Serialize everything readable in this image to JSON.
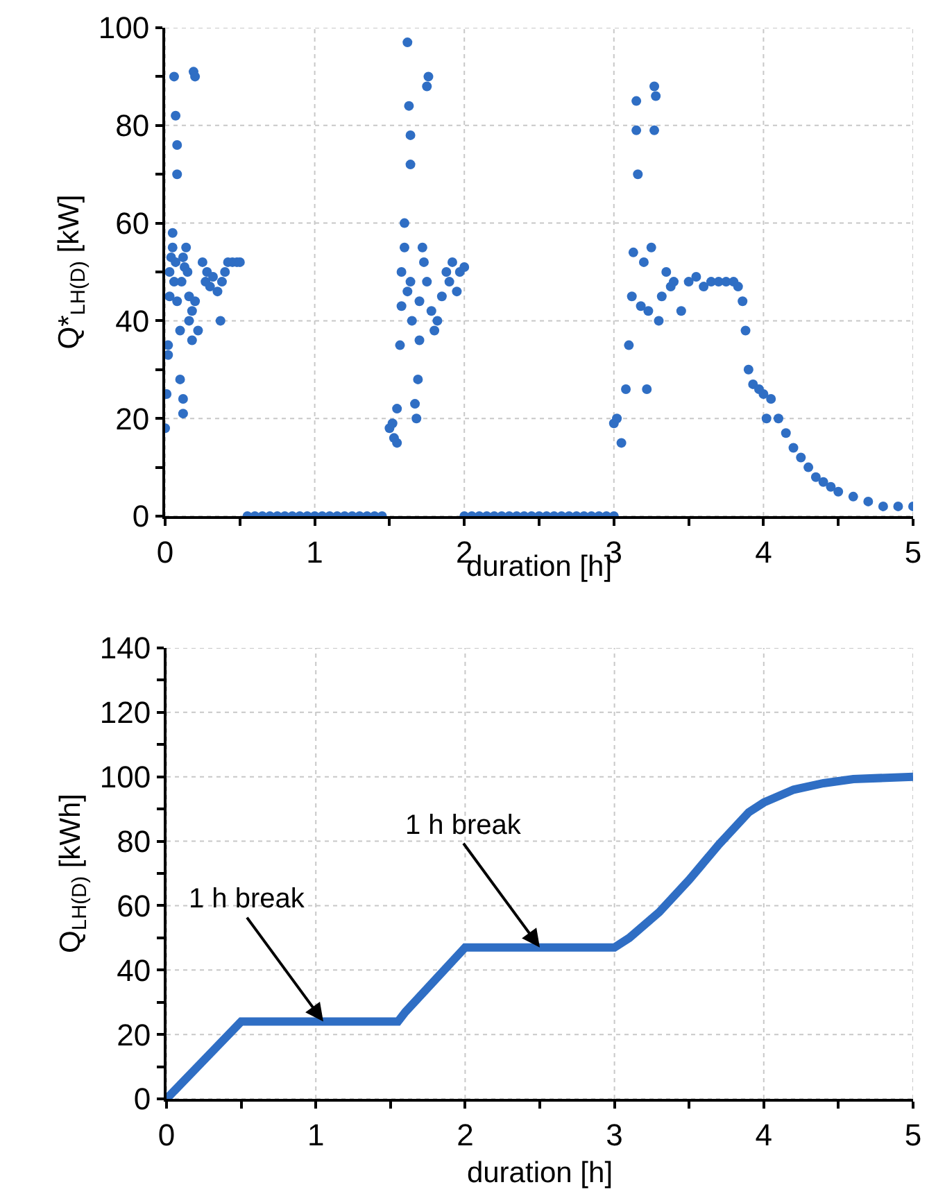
{
  "chart_data": [
    {
      "type": "scatter",
      "xlabel": "duration [h]",
      "ylabel": "Q*$_{LH(D)}$ [kW]",
      "marker": "circle",
      "grid": true,
      "xlim": [
        0,
        5
      ],
      "xticks": [
        0,
        {
          "value": 0.5,
          "label": null
        },
        1,
        {
          "value": 1.5,
          "label": null
        },
        2,
        {
          "value": 2.5,
          "label": null
        },
        3,
        {
          "value": 3.5,
          "label": null
        },
        4,
        {
          "value": 4.5,
          "label": null
        },
        5
      ],
      "ylim": [
        0,
        100
      ],
      "yticks": [
        0,
        {
          "value": 10,
          "label": null
        },
        20,
        {
          "value": 30,
          "label": null
        },
        40,
        {
          "value": 50,
          "label": null
        },
        60,
        {
          "value": 70,
          "label": null
        },
        80,
        {
          "value": 90,
          "label": null
        },
        100
      ],
      "series": [
        {
          "color": "#2f6ec4",
          "x": [
            0,
            0.01,
            0.02,
            0.02,
            0.03,
            0.03,
            0.04,
            0.05,
            0.05,
            0.06,
            0.07,
            0.08,
            0.08,
            0.06,
            0.07,
            0.08,
            0.1,
            0.1,
            0.12,
            0.12,
            0.11,
            0.12,
            0.13,
            0.14,
            0.15,
            0.16,
            0.16,
            0.18,
            0.18,
            0.19,
            0.2,
            0.2,
            0.22,
            0.25,
            0.27,
            0.28,
            0.3,
            0.32,
            0.35,
            0.37,
            0.38,
            0.4,
            0.42,
            0.45,
            0.48,
            0.5,
            0.55,
            0.6,
            0.65,
            0.7,
            0.75,
            0.8,
            0.85,
            0.9,
            0.95,
            1,
            1.05,
            1.1,
            1.15,
            1.2,
            1.25,
            1.3,
            1.35,
            1.4,
            1.45,
            1.5,
            1.52,
            1.53,
            1.55,
            1.55,
            1.57,
            1.58,
            1.58,
            1.6,
            1.6,
            1.62,
            1.63,
            1.64,
            1.64,
            1.62,
            1.64,
            1.65,
            1.67,
            1.68,
            1.69,
            1.7,
            1.7,
            1.72,
            1.73,
            1.75,
            1.76,
            1.75,
            1.78,
            1.8,
            1.82,
            1.85,
            1.88,
            1.9,
            1.92,
            1.95,
            1.97,
            2,
            2.0,
            2.05,
            2.1,
            2.15,
            2.2,
            2.25,
            2.3,
            2.35,
            2.4,
            2.45,
            2.5,
            2.55,
            2.6,
            2.65,
            2.7,
            2.75,
            2.8,
            2.85,
            2.9,
            2.95,
            3,
            3.0,
            3.02,
            3.05,
            3.08,
            3.1,
            3.12,
            3.13,
            3.15,
            3.15,
            3.16,
            3.18,
            3.2,
            3.22,
            3.23,
            3.25,
            3.27,
            3.27,
            3.28,
            3.3,
            3.32,
            3.35,
            3.38,
            3.4,
            3.45,
            3.5,
            3.55,
            3.6,
            3.65,
            3.7,
            3.75,
            3.8,
            3.83,
            3.86,
            3.88,
            3.9,
            3.93,
            3.97,
            4,
            4.02,
            4.05,
            4.1,
            4.15,
            4.2,
            4.25,
            4.3,
            4.35,
            4.4,
            4.45,
            4.5,
            4.6,
            4.7,
            4.8,
            4.9,
            5
          ],
          "values": [
            18,
            25,
            33,
            35,
            45,
            50,
            53,
            58,
            55,
            90,
            82,
            76,
            70,
            48,
            52,
            44,
            28,
            38,
            21,
            24,
            48,
            53,
            51,
            55,
            50,
            45,
            40,
            36,
            42,
            91,
            90,
            44,
            38,
            52,
            48,
            50,
            47,
            49,
            46,
            40,
            48,
            50,
            52,
            52,
            52,
            52,
            0,
            0,
            0,
            0,
            0,
            0,
            0,
            0,
            0,
            0,
            0,
            0,
            0,
            0,
            0,
            0,
            0,
            0,
            0,
            18,
            19,
            16,
            15,
            22,
            35,
            43,
            50,
            55,
            60,
            97,
            84,
            78,
            72,
            46,
            48,
            40,
            23,
            20,
            28,
            36,
            44,
            55,
            52,
            88,
            90,
            48,
            42,
            38,
            40,
            45,
            50,
            48,
            52,
            46,
            50,
            51,
            0,
            0,
            0,
            0,
            0,
            0,
            0,
            0,
            0,
            0,
            0,
            0,
            0,
            0,
            0,
            0,
            0,
            0,
            0,
            0,
            0,
            19,
            20,
            15,
            26,
            35,
            45,
            54,
            85,
            79,
            70,
            43,
            52,
            26,
            42,
            55,
            88,
            79,
            86,
            40,
            45,
            50,
            47,
            48,
            42,
            48,
            49,
            47,
            48,
            48,
            48,
            48,
            47,
            44,
            38,
            30,
            27,
            26,
            25,
            20,
            24,
            20,
            17,
            14,
            12,
            10,
            8,
            7,
            6,
            5,
            4,
            3,
            2,
            2,
            2
          ]
        }
      ]
    },
    {
      "type": "line",
      "xlabel": "duration [h]",
      "ylabel": "Q$_{LH(D)}$ [kWh]",
      "marker": "none",
      "line_style": "solid",
      "grid": true,
      "xlim": [
        0,
        5
      ],
      "xticks": [
        0,
        {
          "value": 0.5,
          "label": null
        },
        1,
        {
          "value": 1.5,
          "label": null
        },
        2,
        {
          "value": 2.5,
          "label": null
        },
        3,
        {
          "value": 3.5,
          "label": null
        },
        4,
        {
          "value": 4.5,
          "label": null
        },
        5
      ],
      "ylim": [
        0,
        140
      ],
      "yticks": [
        0,
        {
          "value": 10,
          "label": null
        },
        20,
        {
          "value": 30,
          "label": null
        },
        40,
        {
          "value": 50,
          "label": null
        },
        60,
        {
          "value": 70,
          "label": null
        },
        80,
        {
          "value": 90,
          "label": null
        },
        100,
        {
          "value": 110,
          "label": null
        },
        120,
        {
          "value": 130,
          "label": null
        },
        140
      ],
      "annotations": [
        {
          "text": "1 h break",
          "x": 1.05,
          "y": 24
        },
        {
          "text": "1 h break",
          "x": 2.5,
          "y": 47
        }
      ],
      "series": [
        {
          "color": "#2f6ec4",
          "x": [
            0,
            0.5,
            1.55,
            1.6,
            2,
            3,
            3.1,
            3.3,
            3.5,
            3.7,
            3.9,
            4,
            4.2,
            4.4,
            4.6,
            5
          ],
          "values": [
            0,
            24,
            24,
            27,
            47,
            47,
            50,
            58,
            68,
            79,
            89,
            92,
            96,
            98,
            99.3,
            100
          ]
        }
      ]
    }
  ]
}
